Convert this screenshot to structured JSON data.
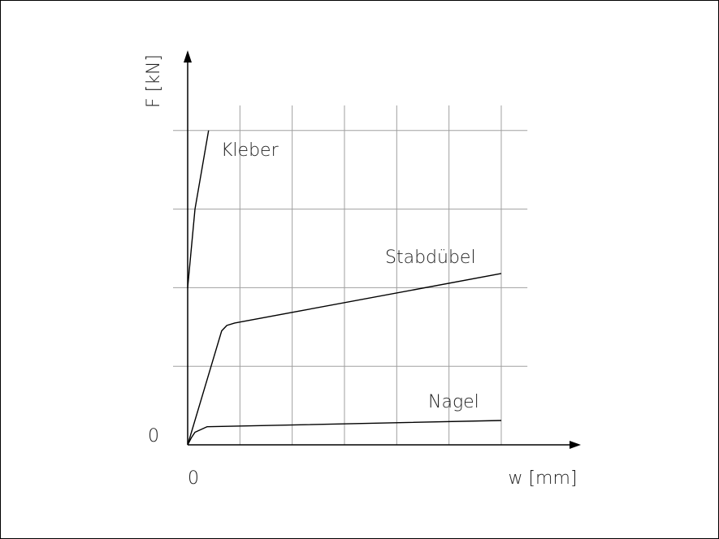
{
  "chart_data": {
    "type": "line",
    "x_label": "w [mm]",
    "y_label": "F [kN]",
    "xlim": [
      0,
      7.5
    ],
    "ylim": [
      0,
      5
    ],
    "xticks": [
      0
    ],
    "yticks": [
      0
    ],
    "xgrid": [
      1,
      2,
      3,
      4,
      5,
      6
    ],
    "ygrid": [
      1,
      2,
      3,
      4
    ],
    "grid": true,
    "series": [
      {
        "name": "Kleber",
        "color": "#000000",
        "x": [
          0,
          0.14,
          0.4
        ],
        "values": [
          2.0,
          3.0,
          4.0
        ]
      },
      {
        "name": "Stabdübel",
        "color": "#000000",
        "x": [
          0,
          0.65,
          0.75,
          0.9,
          6.0
        ],
        "values": [
          0,
          1.45,
          1.52,
          1.55,
          2.18
        ]
      },
      {
        "name": "Nagel",
        "color": "#000000",
        "x": [
          0,
          0.07,
          0.14,
          0.37,
          6.0
        ],
        "values": [
          0,
          0.09,
          0.16,
          0.23,
          0.31
        ]
      }
    ]
  }
}
